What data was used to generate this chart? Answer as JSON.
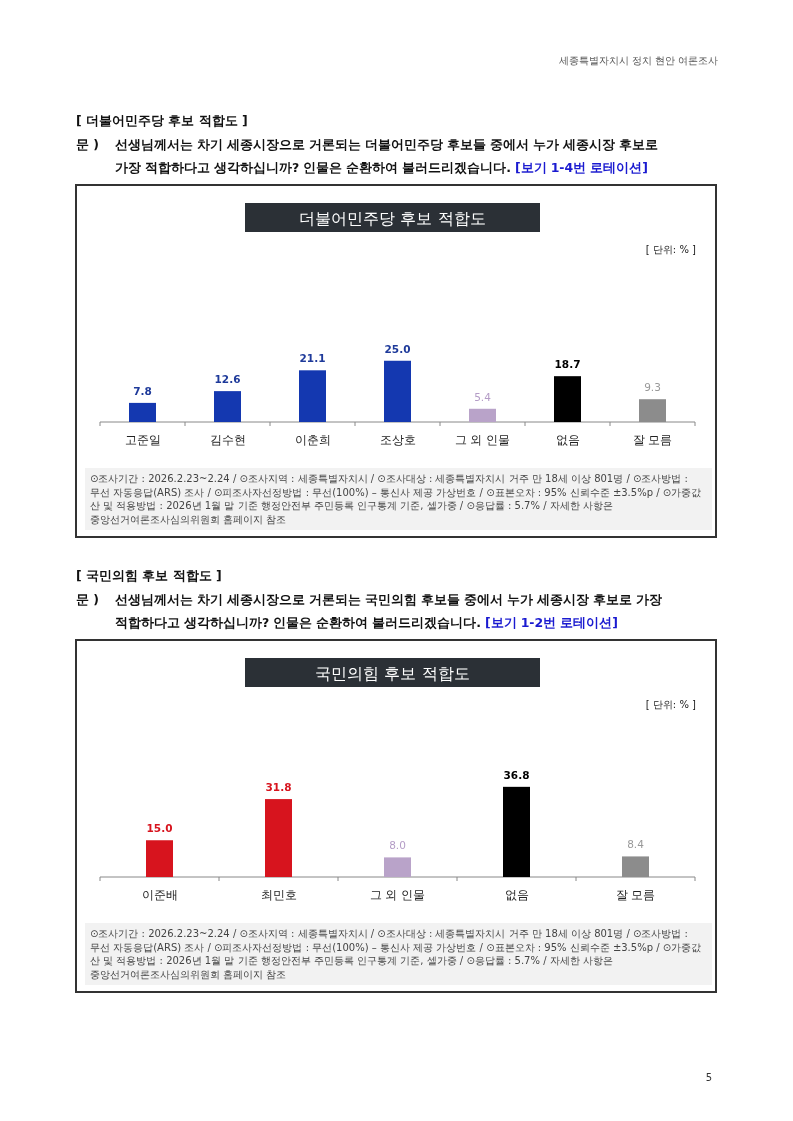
{
  "chart_data": [
    {
      "type": "bar",
      "title": "더불어민주당 후보 적합도",
      "subtitle": "선생님께서는 차기 세종시장으로 거론되는 더불어민주당 후보들 중에서 누가 세종시장 후보로 가장 적합하다고 생각하십니까? 인물은 순환하여 불러드리겠습니다.",
      "categories": [
        "고준일",
        "김수현",
        "이춘희",
        "조상호",
        "그 외 인물",
        "없음",
        "잘 모름"
      ],
      "values": [
        7.8,
        12.6,
        21.1,
        25.0,
        5.4,
        18.7,
        9.3
      ],
      "colors": [
        "#1438b0",
        "#1438b0",
        "#1438b0",
        "#1438b0",
        "#b9a3c9",
        "#000000",
        "#8c8c8c"
      ],
      "value_labels": [
        "7.8",
        "12.6",
        "21.1",
        "25.0",
        "5.4",
        "18.7",
        "9.3"
      ],
      "annotations": [
        "[ 더불어민주당 후보 적합도 ]",
        "[보기 1-4번 로테이션]",
        "[ 단위: % ]",
        "⊙조사기간 : 2026.2.23~2.24 / ⊙조사지역 : 세종특별자치시 / ⊙조사대상 : 세종특별자치시 거주 만 18세 이상 801명 / ⊙조사방법 : 무선 자동응답(ARS) 조사 / ⊙피조사자선정방법 : 무선(100%) – 통신사 제공 가상번호 / ⊙표본오차 : 95% 신뢰수준 ±3.5%p / ⊙가중값 산 및 적용방법 : 2026년 1월 말 기준 행정안전부 주민등록 인구통계 기준, 셀가중 / ⊙응답률 : 5.7% / 자세한 사항은 중앙선거여론조사심의위원회 홈페이지 참조",
        "세종특별자치시 정치 현안 여론조사",
        "문 )"
      ]
    },
    {
      "type": "bar",
      "title": "국민의힘 후보 적합도",
      "subtitle": "선생님께서는 차기 세종시장으로 거론되는 국민의힘 후보들 중에서 누가 세종시장 후보로 가장 적합하다고 생각하십니까? 인물은 순환하여 불러드리겠습니다.",
      "categories": [
        "이준배",
        "최민호",
        "그 외 인물",
        "없음",
        "잘 모름"
      ],
      "values": [
        15.0,
        31.8,
        8.0,
        36.8,
        8.4
      ],
      "colors": [
        "#d7141e",
        "#d7141e",
        "#b9a3c9",
        "#000000",
        "#8c8c8c"
      ],
      "value_labels": [
        "15.0",
        "31.8",
        "8.0",
        "36.8",
        "8.4"
      ],
      "annotations": [
        "[ 국민의힘 후보 적합도 ]",
        "[보기 1-2번 로테이션]",
        "[ 단위: % ]",
        "⊙조사기간 : 2026.2.23~2.24 / ⊙조사지역 : 세종특별자치시 / ⊙조사대상 : 세종특별자치시 거주 만 18세 이상 801명 / ⊙조사방법 : 무선 자동응답(ARS) 조사 / ⊙피조사자선정방법 : 무선(100%) – 통신사 제공 가상번호 / ⊙표본오차 : 95% 신뢰수준 ±3.5%p / ⊙가중값 산 및 적용방법 : 2026년 1월 말 기준 행정안전부 주민등록 인구통계 기준, 셀가중 / ⊙응답률 : 5.7% / 자세한 사항은 중앙선거여론조사심의위원회 홈페이지 참조",
        "5",
        "문 )"
      ]
    }
  ]
}
